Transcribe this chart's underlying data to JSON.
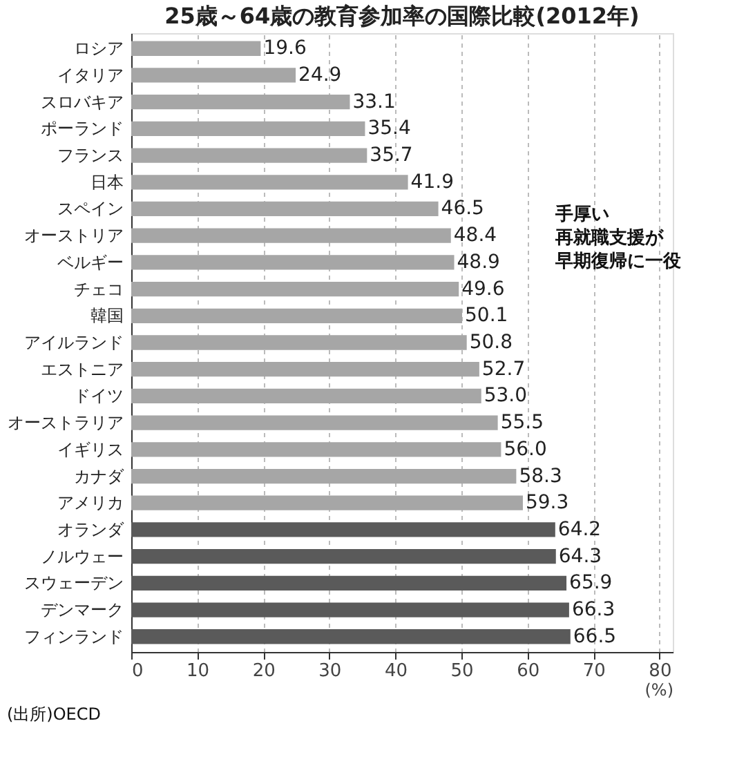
{
  "chart_data": {
    "type": "bar",
    "orientation": "horizontal",
    "title": "25歳～64歳の教育参加率の国際比較(2012年)",
    "xlabel": "(%)",
    "categories": [
      "ロシア",
      "イタリア",
      "スロバキア",
      "ポーランド",
      "フランス",
      "日本",
      "スペイン",
      "オーストリア",
      "ベルギー",
      "チェコ",
      "韓国",
      "アイルランド",
      "エストニア",
      "ドイツ",
      "オーストラリア",
      "イギリス",
      "カナダ",
      "アメリカ",
      "オランダ",
      "ノルウェー",
      "スウェーデン",
      "デンマーク",
      "フィンランド"
    ],
    "values": [
      19.6,
      24.9,
      33.1,
      35.4,
      35.7,
      41.9,
      46.5,
      48.4,
      48.9,
      49.6,
      50.1,
      50.8,
      52.7,
      53.0,
      55.5,
      56.0,
      58.3,
      59.3,
      64.2,
      64.3,
      65.9,
      66.3,
      66.5
    ],
    "colors": [
      "#a6a6a6",
      "#a6a6a6",
      "#a6a6a6",
      "#a6a6a6",
      "#a6a6a6",
      "#a6a6a6",
      "#a6a6a6",
      "#a6a6a6",
      "#a6a6a6",
      "#a6a6a6",
      "#a6a6a6",
      "#a6a6a6",
      "#a6a6a6",
      "#a6a6a6",
      "#a6a6a6",
      "#a6a6a6",
      "#a6a6a6",
      "#a6a6a6",
      "#5a5a5a",
      "#5a5a5a",
      "#5a5a5a",
      "#5a5a5a",
      "#5a5a5a"
    ],
    "value_labels": [
      "19.6",
      "24.9",
      "33.1",
      "35.4",
      "35.7",
      "41.9",
      "46.5",
      "48.4",
      "48.9",
      "49.6",
      "50.1",
      "50.8",
      "52.7",
      "53.0",
      "55.5",
      "56.0",
      "58.3",
      "59.3",
      "64.2",
      "64.3",
      "65.9",
      "66.3",
      "66.5"
    ],
    "xlim": [
      0,
      82
    ],
    "xticks": [
      0,
      10,
      20,
      30,
      40,
      50,
      60,
      70,
      80
    ],
    "grid": "x",
    "annotations": [
      "手厚い再就職支援が早期復帰に一役",
      "(出所)OECD"
    ]
  }
}
